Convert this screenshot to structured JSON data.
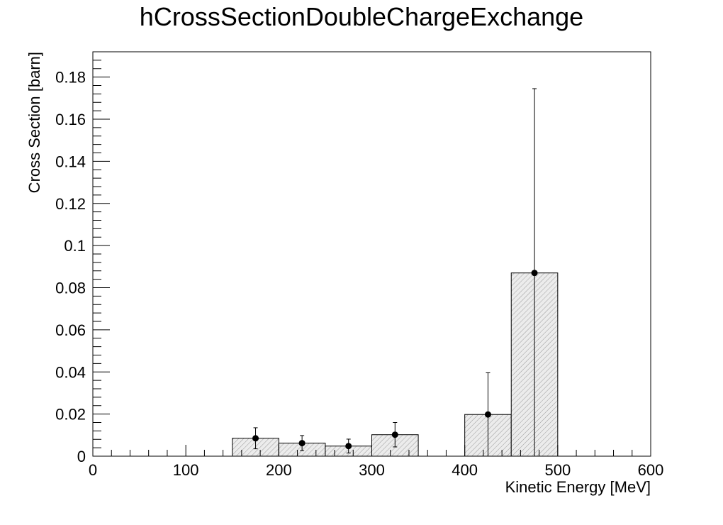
{
  "chart_data": {
    "type": "bar",
    "title": "hCrossSectionDoubleChargeExchange",
    "xlabel": "Kinetic Energy [MeV]",
    "ylabel": "Cross Section [barn]",
    "xlim": [
      0,
      600
    ],
    "ylim": [
      0,
      0.192
    ],
    "grid": false,
    "legend": "none",
    "x_tick_labels": [
      "0",
      "100",
      "200",
      "300",
      "400",
      "500",
      "600"
    ],
    "y_tick_labels": [
      "0",
      "0.02",
      "0.04",
      "0.06",
      "0.08",
      "0.1",
      "0.12",
      "0.14",
      "0.16",
      "0.18"
    ],
    "bins": [
      {
        "x_low": 150,
        "x_high": 200,
        "value": 0.0085,
        "err": 0.005
      },
      {
        "x_low": 200,
        "x_high": 250,
        "value": 0.0062,
        "err": 0.0036
      },
      {
        "x_low": 250,
        "x_high": 300,
        "value": 0.0048,
        "err": 0.0033
      },
      {
        "x_low": 300,
        "x_high": 350,
        "value": 0.0102,
        "err": 0.0058
      },
      {
        "x_low": 400,
        "x_high": 450,
        "value": 0.0198,
        "err": 0.0198
      },
      {
        "x_low": 450,
        "x_high": 500,
        "value": 0.087,
        "err": 0.0875
      }
    ],
    "colors": {
      "bar_fill": "#ececec",
      "bar_hatch": "#9a9a9a",
      "bar_edge": "#000000",
      "marker": "#000000"
    }
  }
}
